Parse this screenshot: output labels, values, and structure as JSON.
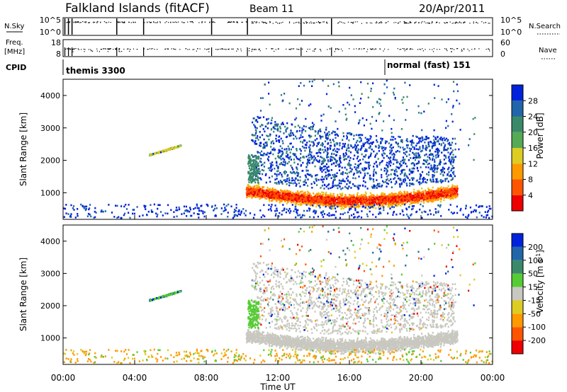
{
  "header": {
    "title": "Falkland Islands (fitACF)",
    "beam": "Beam 11",
    "date": "20/Apr/2011"
  },
  "nsky_panel": {
    "left_label": "N.Sky",
    "right_label": "N.Search",
    "left_ticks": [
      "10^5",
      "10^0"
    ],
    "right_ticks": [
      "10^5",
      "10^0"
    ]
  },
  "freq_panel": {
    "left_label_1": "Freq.",
    "left_label_2": "[MHz]",
    "right_label": "Nave",
    "left_ticks": [
      "18",
      "8"
    ],
    "right_ticks": [
      "60",
      "0"
    ]
  },
  "cpid_panel": {
    "label": "CPID",
    "modes": [
      {
        "name": "themis 3300",
        "start_hour": 0
      },
      {
        "name": "normal (fast) 151",
        "start_hour": 18
      }
    ]
  },
  "colors": {
    "power": [
      "#0022dd",
      "#2266aa",
      "#3a8a6a",
      "#55aa55",
      "#ddcc22",
      "#ff9900",
      "#ff5500",
      "#ee0000"
    ],
    "velocity": [
      "#0022dd",
      "#2266aa",
      "#3a8a6a",
      "#55cc33",
      "#c8c8c0",
      "#ddcc22",
      "#ff9900",
      "#ff5500",
      "#ee0000"
    ],
    "ground_scatter": "#c8c8c0"
  },
  "chart_data": [
    {
      "type": "heatmap",
      "panel": "power",
      "ylabel": "Slant Range [km]",
      "xlim": [
        0,
        24
      ],
      "ylim": [
        180,
        4500
      ],
      "yticks": [
        1000,
        2000,
        3000,
        4000
      ],
      "colorbar": {
        "label": "Power [dB]",
        "ticks": [
          "28",
          "24",
          "20",
          "16",
          "12",
          "8",
          "4"
        ],
        "range": [
          0,
          32
        ]
      },
      "features": [
        {
          "name": "streak",
          "t_start": 4.8,
          "t_end": 6.5,
          "range_start": 2150,
          "range_end": 2450
        },
        {
          "name": "main-band",
          "t_start": 10.2,
          "t_end": 22.0,
          "range_center": 1000,
          "range_width": 500
        },
        {
          "name": "upper-diffuse",
          "t_start": 11.0,
          "t_end": 22.0,
          "range_start": 1500,
          "range_end": 3300
        }
      ]
    },
    {
      "type": "heatmap",
      "panel": "velocity",
      "ylabel": "Slant Range [km]",
      "xlabel": "Time UT",
      "xlim": [
        0,
        24
      ],
      "ylim": [
        180,
        4500
      ],
      "yticks": [
        1000,
        2000,
        3000,
        4000
      ],
      "xticks": [
        "00:00",
        "04:00",
        "08:00",
        "12:00",
        "16:00",
        "20:00",
        "00:00"
      ],
      "colorbar": {
        "label": "Velocity [m s^-1]",
        "ticks": [
          "200",
          "100",
          "50",
          "15",
          "-15",
          "-50",
          "-100",
          "-200"
        ],
        "range": [
          -250,
          250
        ]
      }
    }
  ]
}
